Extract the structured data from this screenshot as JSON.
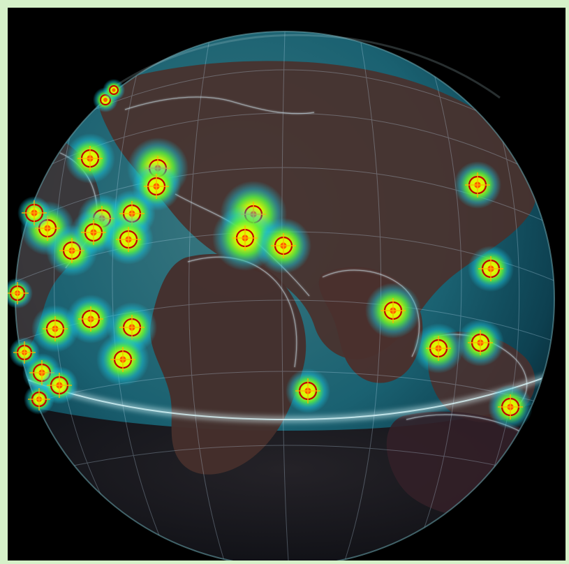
{
  "frame": {
    "background_color": "#d6f1c9",
    "scene_color": "#000000"
  },
  "globe": {
    "ocean_color": "#1d6d7c",
    "land_color": "#4a312d",
    "grid_color": "#cde9ff",
    "coastline_color": "#dff6ff",
    "equator_glow": "#dffcff"
  },
  "hotspots": {
    "count": 31,
    "core_color": "#ff5a00",
    "ring_color": "#c20000",
    "glow_inner": "#eaff00",
    "glow_mid": "#57ef43",
    "glow_outer": "#18c7de"
  }
}
